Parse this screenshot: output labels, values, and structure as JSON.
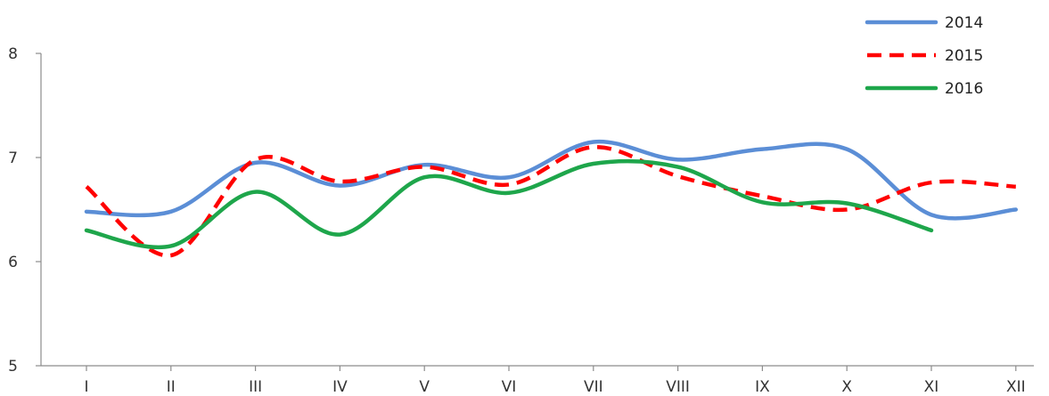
{
  "chart_data": {
    "type": "line",
    "categories": [
      "I",
      "II",
      "III",
      "IV",
      "V",
      "VI",
      "VII",
      "VIII",
      "IX",
      "X",
      "XI",
      "XII"
    ],
    "series": [
      {
        "name": "2014",
        "color": "#5B8ED6",
        "dash": "solid",
        "values": [
          6.48,
          6.48,
          6.95,
          6.73,
          6.93,
          6.81,
          7.15,
          6.98,
          7.08,
          7.08,
          6.45,
          6.5
        ]
      },
      {
        "name": "2015",
        "color": "#FF0000",
        "dash": "dashed",
        "values": [
          6.72,
          6.06,
          6.98,
          6.77,
          6.91,
          6.74,
          7.1,
          6.82,
          6.63,
          6.5,
          6.76,
          6.72
        ]
      },
      {
        "name": "2016",
        "color": "#1EA64B",
        "dash": "solid",
        "values": [
          6.3,
          6.15,
          6.67,
          6.26,
          6.81,
          6.66,
          6.94,
          6.91,
          6.57,
          6.56,
          6.3,
          null
        ]
      }
    ],
    "y_ticks": [
      "5",
      "6",
      "7",
      "8"
    ],
    "ylim": [
      5,
      8
    ],
    "grid": false,
    "legend_position": "top-right"
  }
}
